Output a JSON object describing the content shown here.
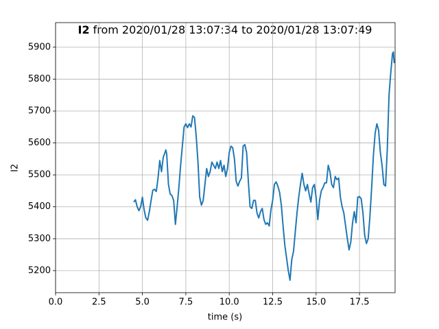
{
  "chart_data": {
    "type": "line",
    "title": [
      "I2",
      "from 2020/01/28 13:07:34 to 2020/01/28 13:07:49"
    ],
    "xlabel": "time (s)",
    "ylabel": "I2",
    "color": "#1f77b4",
    "grid": true,
    "xlim": [
      0,
      19.55
    ],
    "ylim": [
      5131,
      5977
    ],
    "xticks": [
      {
        "value": 0,
        "label": "0.0"
      },
      2.5,
      {
        "value": 5,
        "label": "5.0"
      },
      7.5,
      {
        "value": 10,
        "label": "10.0"
      },
      12.5,
      {
        "value": 15,
        "label": "15.0"
      },
      17.5
    ],
    "yticks": [
      5200,
      5300,
      5400,
      5500,
      5600,
      5700,
      5800,
      5900
    ],
    "x": [
      4.5,
      4.6,
      4.7,
      4.8,
      4.9,
      5.0,
      5.1,
      5.2,
      5.3,
      5.4,
      5.5,
      5.6,
      5.7,
      5.8,
      5.9,
      6.0,
      6.1,
      6.2,
      6.3,
      6.35,
      6.4,
      6.5,
      6.6,
      6.7,
      6.8,
      6.9,
      7.0,
      7.1,
      7.2,
      7.3,
      7.4,
      7.5,
      7.6,
      7.7,
      7.8,
      7.9,
      8.0,
      8.1,
      8.2,
      8.3,
      8.4,
      8.5,
      8.6,
      8.7,
      8.8,
      8.9,
      9.0,
      9.1,
      9.2,
      9.3,
      9.4,
      9.5,
      9.6,
      9.7,
      9.8,
      9.9,
      10.0,
      10.1,
      10.2,
      10.3,
      10.4,
      10.5,
      10.6,
      10.7,
      10.8,
      10.9,
      11.0,
      11.1,
      11.2,
      11.3,
      11.4,
      11.5,
      11.6,
      11.7,
      11.8,
      11.9,
      12.0,
      12.1,
      12.2,
      12.3,
      12.4,
      12.5,
      12.6,
      12.7,
      12.8,
      12.9,
      13.0,
      13.1,
      13.2,
      13.3,
      13.4,
      13.5,
      13.6,
      13.7,
      13.8,
      13.9,
      14.0,
      14.1,
      14.2,
      14.3,
      14.4,
      14.5,
      14.6,
      14.7,
      14.8,
      14.9,
      15.0,
      15.1,
      15.2,
      15.3,
      15.4,
      15.5,
      15.6,
      15.7,
      15.8,
      15.9,
      16.0,
      16.1,
      16.2,
      16.3,
      16.4,
      16.5,
      16.6,
      16.7,
      16.8,
      16.9,
      17.0,
      17.1,
      17.2,
      17.3,
      17.4,
      17.5,
      17.6,
      17.7,
      17.8,
      17.9,
      18.0,
      18.1,
      18.2,
      18.3,
      18.4,
      18.5,
      18.6,
      18.7,
      18.8,
      18.9,
      19.0,
      19.1,
      19.2,
      19.3,
      19.4,
      19.45,
      19.5
    ],
    "values": [
      5415,
      5422,
      5400,
      5388,
      5400,
      5430,
      5390,
      5365,
      5358,
      5385,
      5420,
      5452,
      5455,
      5448,
      5490,
      5545,
      5510,
      5555,
      5570,
      5578,
      5565,
      5470,
      5440,
      5435,
      5420,
      5345,
      5400,
      5460,
      5530,
      5590,
      5650,
      5660,
      5648,
      5660,
      5650,
      5685,
      5680,
      5620,
      5540,
      5430,
      5405,
      5420,
      5470,
      5520,
      5495,
      5510,
      5540,
      5530,
      5520,
      5540,
      5520,
      5545,
      5510,
      5530,
      5495,
      5520,
      5570,
      5590,
      5585,
      5550,
      5480,
      5465,
      5480,
      5490,
      5590,
      5595,
      5570,
      5480,
      5400,
      5395,
      5420,
      5420,
      5380,
      5365,
      5385,
      5395,
      5360,
      5345,
      5350,
      5340,
      5390,
      5420,
      5470,
      5478,
      5465,
      5445,
      5405,
      5340,
      5280,
      5240,
      5200,
      5170,
      5235,
      5260,
      5320,
      5380,
      5430,
      5470,
      5505,
      5470,
      5450,
      5470,
      5440,
      5415,
      5460,
      5470,
      5430,
      5360,
      5420,
      5450,
      5460,
      5475,
      5475,
      5530,
      5510,
      5470,
      5460,
      5495,
      5485,
      5490,
      5430,
      5400,
      5380,
      5340,
      5300,
      5265,
      5290,
      5350,
      5385,
      5350,
      5430,
      5432,
      5425,
      5380,
      5310,
      5285,
      5300,
      5370,
      5460,
      5560,
      5630,
      5660,
      5640,
      5570,
      5530,
      5470,
      5465,
      5580,
      5750,
      5820,
      5880,
      5885,
      5850
    ]
  }
}
